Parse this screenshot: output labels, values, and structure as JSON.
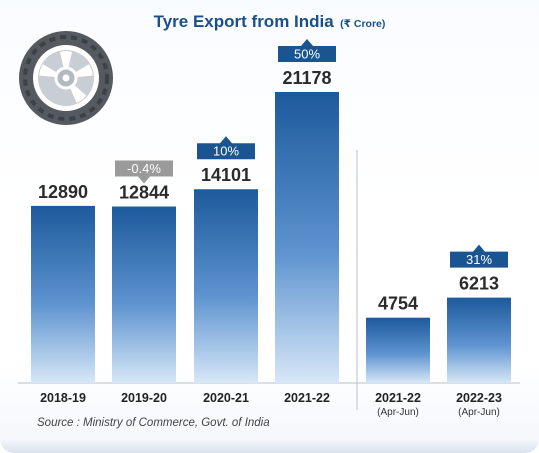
{
  "chart_data": {
    "type": "bar",
    "title": "Tyre Export from India",
    "unit_label": "(₹ Crore)",
    "categories": [
      {
        "label": "2018-19",
        "sublabel": ""
      },
      {
        "label": "2019-20",
        "sublabel": ""
      },
      {
        "label": "2020-21",
        "sublabel": ""
      },
      {
        "label": "2021-22",
        "sublabel": ""
      },
      {
        "label": "2021-22",
        "sublabel": "(Apr-Jun)"
      },
      {
        "label": "2022-23",
        "sublabel": "(Apr-Jun)"
      }
    ],
    "values": [
      12890,
      12844,
      14101,
      21178,
      4754,
      6213
    ],
    "growth_labels": [
      "",
      "-0.4%",
      "10%",
      "50%",
      "",
      "31%"
    ],
    "growth_direction": [
      "none",
      "down",
      "up",
      "up",
      "none",
      "up"
    ],
    "groups": [
      {
        "name": "annual",
        "indices": [
          0,
          1,
          2,
          3
        ]
      },
      {
        "name": "quarter",
        "indices": [
          4,
          5
        ]
      }
    ],
    "ylim": [
      0,
      21178
    ],
    "grid": false,
    "legend": "none",
    "colors": {
      "bar_top": "#1d5a9c",
      "bar_bottom": "#d7e7f7",
      "arrow_up": "#1a5591",
      "arrow_down": "#9a9a9a",
      "value_text": "#2b2b2b",
      "title": "#1a4f8a"
    }
  },
  "source": "Source : Ministry of Commerce, Govt. of India",
  "icons": {
    "tyre": "tyre-icon"
  }
}
